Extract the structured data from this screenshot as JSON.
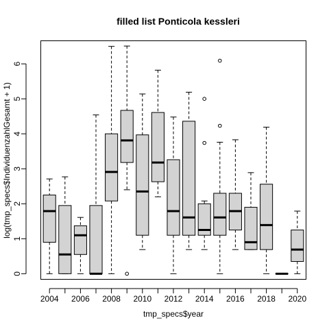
{
  "chart_data": {
    "type": "box",
    "title": "filled list Ponticola kessleri",
    "xlabel": "tmp_specs$year",
    "ylabel": "log(tmp_specs$IndividuenzahlGesamt + 1)",
    "categories": [
      "2004",
      "2005",
      "2006",
      "2007",
      "2008",
      "2009",
      "2010",
      "2011",
      "2012",
      "2013",
      "2014",
      "2015",
      "2016",
      "2017",
      "2018",
      "2019",
      "2020"
    ],
    "x_tick_labels": [
      "2004",
      "2006",
      "2008",
      "2010",
      "2012",
      "2014",
      "2016",
      "2018",
      "2020"
    ],
    "y_ticks": [
      0,
      1,
      2,
      3,
      4,
      5,
      6
    ],
    "ylim": [
      -0.15,
      6.65
    ],
    "grid": false,
    "legend": "none",
    "colors": {
      "box_fill": "#d3d3d3",
      "stroke": "#000000"
    },
    "boxes": [
      {
        "year": "2004",
        "min": 0.0,
        "q1": 0.9,
        "median": 1.79,
        "q3": 2.25,
        "max": 2.71,
        "outliers": []
      },
      {
        "year": "2005",
        "min": 0.0,
        "q1": 0.0,
        "median": 0.55,
        "q3": 1.95,
        "max": 2.77,
        "outliers": []
      },
      {
        "year": "2006",
        "min": 0.0,
        "q1": 0.55,
        "median": 1.1,
        "q3": 1.37,
        "max": 1.61,
        "outliers": []
      },
      {
        "year": "2007",
        "min": 0.0,
        "q1": 0.0,
        "median": 0.0,
        "q3": 1.95,
        "max": 4.54,
        "outliers": []
      },
      {
        "year": "2008",
        "min": 0.0,
        "q1": 2.08,
        "median": 2.91,
        "q3": 4.0,
        "max": 6.5,
        "outliers": []
      },
      {
        "year": "2009",
        "min": 2.4,
        "q1": 3.18,
        "median": 3.81,
        "q3": 4.67,
        "max": 6.51,
        "outliers": [
          0.0
        ]
      },
      {
        "year": "2010",
        "min": 0.69,
        "q1": 1.1,
        "median": 2.35,
        "q3": 3.97,
        "max": 5.14,
        "outliers": []
      },
      {
        "year": "2011",
        "min": 2.2,
        "q1": 2.63,
        "median": 3.18,
        "q3": 4.61,
        "max": 5.82,
        "outliers": []
      },
      {
        "year": "2012",
        "min": 0.0,
        "q1": 1.1,
        "median": 1.79,
        "q3": 3.26,
        "max": 4.48,
        "outliers": []
      },
      {
        "year": "2013",
        "min": 0.69,
        "q1": 1.1,
        "median": 1.61,
        "q3": 4.36,
        "max": 5.19,
        "outliers": []
      },
      {
        "year": "2014",
        "min": 0.69,
        "q1": 1.1,
        "median": 1.25,
        "q3": 2.0,
        "max": 2.08,
        "outliers": [
          3.74,
          5.0
        ]
      },
      {
        "year": "2015",
        "min": 0.0,
        "q1": 1.1,
        "median": 1.61,
        "q3": 2.3,
        "max": 3.76,
        "outliers": [
          4.23,
          6.09
        ]
      },
      {
        "year": "2016",
        "min": 0.69,
        "q1": 1.25,
        "median": 1.79,
        "q3": 2.3,
        "max": 3.83,
        "outliers": []
      },
      {
        "year": "2017",
        "min": 0.69,
        "q1": 0.69,
        "median": 0.9,
        "q3": 1.9,
        "max": 2.89,
        "outliers": []
      },
      {
        "year": "2018",
        "min": 0.0,
        "q1": 0.69,
        "median": 1.39,
        "q3": 2.56,
        "max": 4.19,
        "outliers": []
      },
      {
        "year": "2019",
        "min": 0.0,
        "q1": 0.0,
        "median": 0.0,
        "q3": 0.0,
        "max": 0.0,
        "outliers": []
      },
      {
        "year": "2020",
        "min": 0.0,
        "q1": 0.35,
        "median": 0.69,
        "q3": 1.25,
        "max": 1.79,
        "outliers": []
      }
    ]
  }
}
